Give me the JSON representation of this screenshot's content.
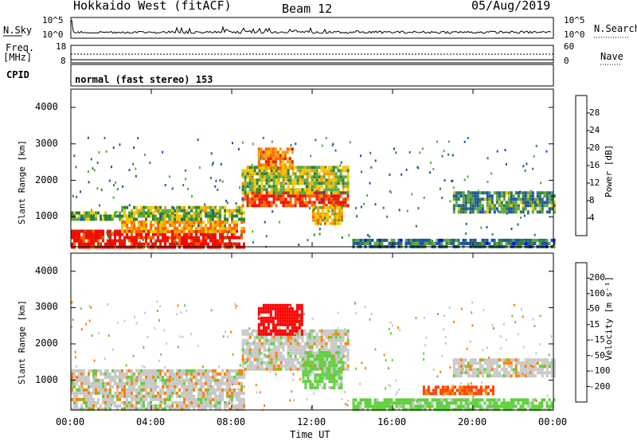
{
  "header": {
    "radar": "Hokkaido West (fitACF)",
    "beam": "Beam 12",
    "date": "05/Aug/2019"
  },
  "top_panels": {
    "nsky_label": "N.Sky",
    "nsearch_label": "N.Search",
    "nsky_ticks": [
      "10^5",
      "10^0"
    ],
    "nsearch_ticks": [
      "10^5",
      "10^0"
    ],
    "freq_label_1": "Freq.",
    "freq_label_2": "[MHz]",
    "freq_ticks": [
      "18",
      "8"
    ],
    "nave_label": "Nave",
    "nave_ticks": [
      "60",
      "0"
    ],
    "cpid_label": "CPID",
    "cpid_text": "normal (fast stereo) 153"
  },
  "colors": {
    "power_scale": [
      "#0000ff",
      "#1f4fb0",
      "#2f7f3f",
      "#5fa83f",
      "#f0c800",
      "#f0a000",
      "#ff6000",
      "#e02000",
      "#ff0000"
    ],
    "velocity_scale": [
      "#ff0000",
      "#ff4000",
      "#ff8000",
      "#ffb000",
      "#c8c8c8",
      "#c8c8c8",
      "#60d040",
      "#3a8a3a",
      "#3060a8",
      "#1010c8"
    ]
  },
  "chart_data": [
    {
      "type": "heatmap",
      "name": "power",
      "xlabel": "Time UT",
      "ylabel": "Slant Range [km]",
      "ytick_labels": [
        "1000",
        "2000",
        "3000",
        "4000"
      ],
      "yticks": [
        1000,
        2000,
        3000,
        4000
      ],
      "ylim": [
        180,
        4500
      ],
      "xlim_hours": [
        0,
        24
      ],
      "colorbar": {
        "label": "Power [dB]",
        "ticks": [
          "4",
          "8",
          "12",
          "16",
          "20",
          "24",
          "28"
        ],
        "range": [
          0,
          32
        ]
      },
      "regions": [
        {
          "t0": 0.0,
          "t1": 8.6,
          "r0": 200,
          "r1": 650,
          "value": 28
        },
        {
          "t0": 2.5,
          "t1": 8.6,
          "r0": 600,
          "r1": 900,
          "value": 20
        },
        {
          "t0": 0.0,
          "t1": 8.6,
          "r0": 900,
          "r1": 1150,
          "value": 12
        },
        {
          "t0": 2.5,
          "t1": 8.5,
          "r0": 1150,
          "r1": 1300,
          "value": 14
        },
        {
          "t0": 8.5,
          "t1": 13.8,
          "r0": 1300,
          "r1": 1700,
          "value": 26
        },
        {
          "t0": 8.5,
          "t1": 13.8,
          "r0": 1700,
          "r1": 2400,
          "value": 14
        },
        {
          "t0": 9.3,
          "t1": 11.0,
          "r0": 2300,
          "r1": 2900,
          "value": 22
        },
        {
          "t0": 12.0,
          "t1": 13.5,
          "r0": 800,
          "r1": 1300,
          "value": 18
        },
        {
          "t0": 14.0,
          "t1": 24.0,
          "r0": 200,
          "r1": 400,
          "value": 8
        },
        {
          "t0": 19.0,
          "t1": 24.0,
          "r0": 1100,
          "r1": 1700,
          "value": 10
        }
      ]
    },
    {
      "type": "heatmap",
      "name": "velocity",
      "xlabel": "Time UT",
      "ylabel": "Slant Range [km]",
      "ytick_labels": [
        "1000",
        "2000",
        "3000",
        "4000"
      ],
      "yticks": [
        1000,
        2000,
        3000,
        4000
      ],
      "ylim": [
        180,
        4500
      ],
      "xtick_labels": [
        "00:00",
        "04:00",
        "08:00",
        "12:00",
        "16:00",
        "20:00",
        "00:00"
      ],
      "xticks_hours": [
        0,
        4,
        8,
        12,
        16,
        20,
        24
      ],
      "colorbar": {
        "label": "Velocity [m s⁻¹]",
        "ticks": [
          "-200",
          "-100",
          "-50",
          "-15",
          "15",
          "50",
          "100",
          "200"
        ]
      },
      "regions": [
        {
          "t0": 0.0,
          "t1": 8.6,
          "r0": 200,
          "r1": 1300,
          "value": 0
        },
        {
          "t0": 8.5,
          "t1": 13.8,
          "r0": 1300,
          "r1": 2400,
          "value": 0
        },
        {
          "t0": 9.3,
          "t1": 11.5,
          "r0": 2300,
          "r1": 3100,
          "value": -200
        },
        {
          "t0": 11.5,
          "t1": 13.5,
          "r0": 800,
          "r1": 1800,
          "value": 30
        },
        {
          "t0": 14.0,
          "t1": 24.0,
          "r0": 200,
          "r1": 500,
          "value": 30
        },
        {
          "t0": 17.5,
          "t1": 21.0,
          "r0": 600,
          "r1": 850,
          "value": -60
        },
        {
          "t0": 19.0,
          "t1": 24.0,
          "r0": 1100,
          "r1": 1600,
          "value": 0
        }
      ]
    }
  ]
}
